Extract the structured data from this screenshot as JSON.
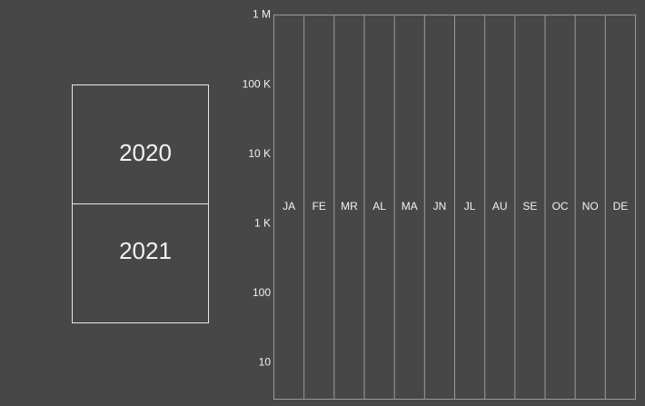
{
  "year_selector": {
    "years": [
      "2020",
      "2021"
    ]
  },
  "chart_data": {
    "type": "bar",
    "categories": [
      "JA",
      "FE",
      "MR",
      "AL",
      "MA",
      "JN",
      "JL",
      "AU",
      "SE",
      "OC",
      "NO",
      "DE"
    ],
    "ylim": [
      3,
      1000000
    ],
    "log_scale": true,
    "yticks": [
      10,
      100,
      {
        "value": 1000,
        "label": "1 K"
      },
      {
        "value": 10000,
        "label": "10 K"
      },
      {
        "value": 100000,
        "label": "100 K"
      },
      {
        "value": 1000000,
        "label": "1 M"
      }
    ]
  }
}
